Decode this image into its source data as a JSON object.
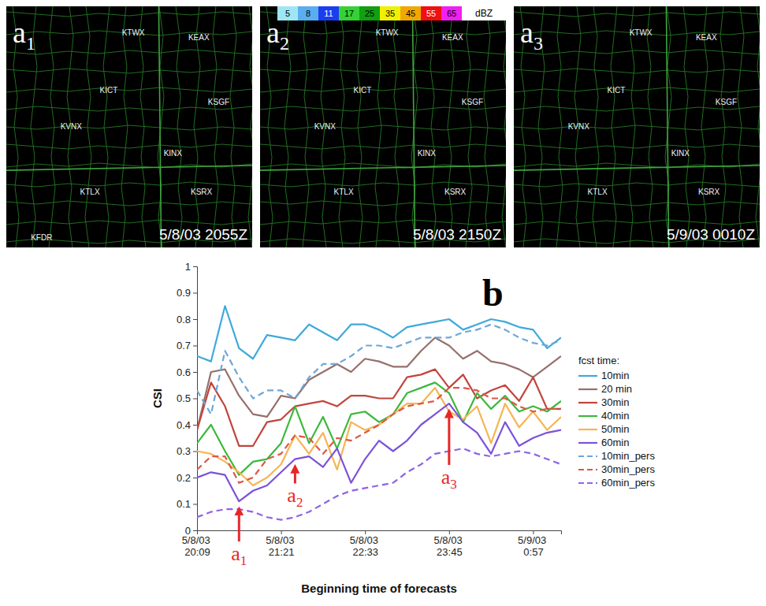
{
  "radar": {
    "panels": [
      {
        "letter": "a",
        "subscript": "1",
        "time": "5/8/03 2055Z",
        "stations": [
          "KTWX",
          "KEAX",
          "KICT",
          "KSGF",
          "KVNX",
          "KINX",
          "KTLX",
          "KSRX",
          "KFDR"
        ]
      },
      {
        "letter": "a",
        "subscript": "2",
        "time": "5/8/03 2150Z",
        "stations": [
          "KTWX",
          "KEAX",
          "KICT",
          "KSGF",
          "KVNX",
          "KINX",
          "KTLX",
          "KSRX"
        ],
        "colorbar": {
          "ticks": [
            5,
            8,
            11,
            17,
            25,
            35,
            45,
            55,
            65
          ],
          "colors": [
            "#9fe6f5",
            "#5aaef0",
            "#1c3cf0",
            "#35d235",
            "#10a010",
            "#f0f000",
            "#f0a800",
            "#f01010",
            "#f020f0"
          ],
          "label": "dBZ"
        }
      },
      {
        "letter": "a",
        "subscript": "3",
        "time": "5/9/03 0010Z",
        "stations": [
          "KTWX",
          "KEAX",
          "KICT",
          "KSGF",
          "KVNX",
          "KINX",
          "KTLX",
          "KSRX"
        ]
      }
    ]
  },
  "chart_data": {
    "type": "line",
    "panel_label": "b",
    "x_label": "Beginning time of forecasts",
    "y_label": "CSI",
    "categories": [
      "5/8/03 20:09",
      null,
      null,
      null,
      null,
      null,
      "5/8/03 21:21",
      null,
      null,
      null,
      null,
      null,
      "5/8/03 22:33",
      null,
      null,
      null,
      null,
      null,
      "5/8/03 23:45",
      null,
      null,
      null,
      null,
      null,
      "5/9/03 0:57",
      null,
      null
    ],
    "ylim": [
      0,
      1
    ],
    "yticks": [
      0,
      0.1,
      0.2,
      0.3,
      0.4,
      0.5,
      0.6,
      0.7,
      0.8,
      0.9,
      1
    ],
    "grid": false,
    "legend": "right",
    "legend_title": "fcst time:",
    "series": [
      {
        "name": "10min",
        "color": "#3fa9dc",
        "line_style": "solid",
        "values": [
          0.66,
          0.64,
          0.85,
          0.69,
          0.65,
          0.74,
          0.73,
          0.72,
          0.78,
          0.75,
          0.72,
          0.78,
          0.78,
          0.76,
          0.73,
          0.77,
          0.78,
          0.79,
          0.8,
          0.76,
          0.78,
          0.8,
          0.79,
          0.77,
          0.76,
          0.69,
          0.73
        ]
      },
      {
        "name": "20 min",
        "color": "#96706b",
        "line_style": "solid",
        "values": [
          0.38,
          0.6,
          0.61,
          0.51,
          0.44,
          0.43,
          0.51,
          0.5,
          0.57,
          0.6,
          0.63,
          0.6,
          0.65,
          0.64,
          0.62,
          0.62,
          0.68,
          0.73,
          0.7,
          0.65,
          0.68,
          0.64,
          0.63,
          0.61,
          0.58,
          0.62,
          0.66
        ]
      },
      {
        "name": "30min",
        "color": "#c1453d",
        "line_style": "solid",
        "values": [
          0.38,
          0.56,
          0.47,
          0.32,
          0.32,
          0.41,
          0.42,
          0.47,
          0.48,
          0.49,
          0.47,
          0.51,
          0.51,
          0.5,
          0.5,
          0.58,
          0.59,
          0.61,
          0.54,
          0.59,
          0.5,
          0.53,
          0.55,
          0.49,
          0.58,
          0.46,
          0.46
        ]
      },
      {
        "name": "40min",
        "color": "#3db83d",
        "line_style": "solid",
        "values": [
          0.33,
          0.4,
          0.3,
          0.21,
          0.26,
          0.27,
          0.33,
          0.47,
          0.33,
          0.43,
          0.31,
          0.44,
          0.45,
          0.41,
          0.44,
          0.52,
          0.54,
          0.56,
          0.52,
          0.41,
          0.52,
          0.46,
          0.51,
          0.45,
          0.47,
          0.45,
          0.49
        ]
      },
      {
        "name": "50min",
        "color": "#f6b552",
        "line_style": "solid",
        "values": [
          0.3,
          0.29,
          0.26,
          0.22,
          0.17,
          0.2,
          0.25,
          0.36,
          0.29,
          0.37,
          0.23,
          0.41,
          0.38,
          0.4,
          0.44,
          0.48,
          0.48,
          0.54,
          0.45,
          0.42,
          0.47,
          0.33,
          0.48,
          0.39,
          0.45,
          0.38,
          0.43
        ]
      },
      {
        "name": "60min",
        "color": "#7a52d9",
        "line_style": "solid",
        "values": [
          0.2,
          0.22,
          0.21,
          0.11,
          0.15,
          0.17,
          0.22,
          0.27,
          0.28,
          0.24,
          0.31,
          0.18,
          0.27,
          0.34,
          0.3,
          0.34,
          0.4,
          0.44,
          0.48,
          0.41,
          0.37,
          0.29,
          0.41,
          0.32,
          0.35,
          0.37,
          0.38
        ]
      },
      {
        "name": "10min_pers",
        "color": "#6ea6d8",
        "line_style": "dashed",
        "values": [
          0.53,
          0.44,
          0.68,
          0.58,
          0.5,
          0.53,
          0.53,
          0.5,
          0.58,
          0.63,
          0.63,
          0.66,
          0.7,
          0.7,
          0.69,
          0.71,
          0.73,
          0.73,
          0.73,
          0.75,
          0.76,
          0.78,
          0.76,
          0.73,
          0.71,
          0.7,
          0.72
        ]
      },
      {
        "name": "30min_pers",
        "color": "#de5743",
        "line_style": "dashed",
        "values": [
          0.23,
          0.28,
          0.28,
          0.18,
          0.2,
          0.27,
          0.29,
          0.36,
          0.35,
          0.29,
          0.35,
          0.34,
          0.37,
          0.4,
          0.44,
          0.47,
          0.48,
          0.49,
          0.54,
          0.54,
          0.53,
          0.5,
          0.5,
          0.47,
          0.45,
          0.46,
          0.46
        ]
      },
      {
        "name": "60min_pers",
        "color": "#8f63e6",
        "line_style": "dashed",
        "values": [
          0.05,
          0.07,
          0.08,
          0.08,
          0.07,
          0.05,
          0.04,
          0.05,
          0.07,
          0.1,
          0.13,
          0.15,
          0.16,
          0.17,
          0.18,
          0.22,
          0.25,
          0.29,
          0.3,
          0.31,
          0.29,
          0.28,
          0.29,
          0.3,
          0.29,
          0.27,
          0.25
        ]
      }
    ],
    "annotations": [
      {
        "text": "a",
        "subscript": "1",
        "x": 3,
        "y": 0.09,
        "label_y": -0.09
      },
      {
        "text": "a",
        "subscript": "2",
        "x": 7,
        "y": 0.25,
        "label_y": 0.13
      },
      {
        "text": "a",
        "subscript": "3",
        "x": 18,
        "y": 0.46,
        "label_y": 0.2
      }
    ]
  }
}
